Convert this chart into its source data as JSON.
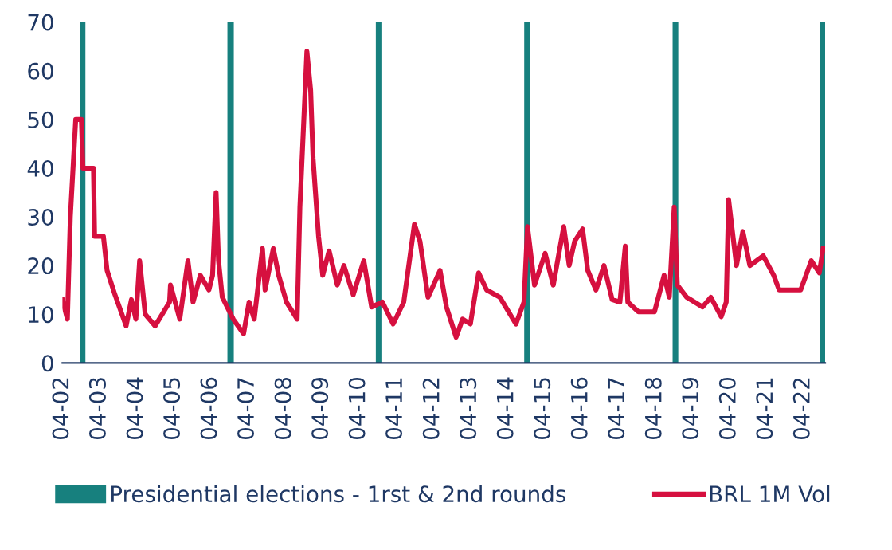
{
  "chart_data": {
    "type": "line",
    "x": [
      "2002-04-01",
      "2002-05-20",
      "2002-06-18",
      "2002-08-10",
      "2002-10-05",
      "2002-10-20",
      "2003-02-01",
      "2003-02-12",
      "2003-05-10",
      "2003-06-15",
      "2003-09-01",
      "2003-12-20",
      "2004-02-10",
      "2004-03-25",
      "2004-05-01",
      "2004-06-25",
      "2004-10-01",
      "2005-02-20",
      "2005-03-01",
      "2005-06-01",
      "2005-08-20",
      "2005-10-10",
      "2005-12-20",
      "2006-03-15",
      "2006-04-20",
      "2006-05-25",
      "2006-06-18",
      "2006-07-25",
      "2006-11-10",
      "2007-02-20",
      "2007-04-15",
      "2007-06-05",
      "2007-08-25",
      "2007-09-20",
      "2007-12-10",
      "2008-02-01",
      "2008-04-18",
      "2008-08-01",
      "2008-08-28",
      "2008-11-05",
      "2008-12-12",
      "2009-01-05",
      "2009-02-28",
      "2009-04-10",
      "2009-06-12",
      "2009-09-01",
      "2009-11-05",
      "2010-02-05",
      "2010-05-20",
      "2010-08-05",
      "2010-11-20",
      "2011-03-05",
      "2011-06-18",
      "2011-10-01",
      "2011-11-25",
      "2012-02-12",
      "2012-06-10",
      "2012-08-12",
      "2012-11-15",
      "2013-01-18",
      "2013-04-05",
      "2013-06-25",
      "2013-09-12",
      "2014-01-20",
      "2014-06-28",
      "2014-09-15",
      "2014-10-20",
      "2014-12-28",
      "2015-04-12",
      "2015-07-01",
      "2015-10-12",
      "2015-12-05",
      "2016-01-28",
      "2016-04-15",
      "2016-06-05",
      "2016-08-25",
      "2016-11-12",
      "2017-02-01",
      "2017-04-18",
      "2017-06-10",
      "2017-07-05",
      "2017-10-18",
      "2018-03-25",
      "2018-06-28",
      "2018-08-18",
      "2018-10-05",
      "2018-11-05",
      "2019-02-05",
      "2019-07-12",
      "2019-10-01",
      "2020-01-12",
      "2020-03-01",
      "2020-03-25",
      "2020-06-10",
      "2020-08-12",
      "2020-10-20",
      "2021-03-01",
      "2021-06-12",
      "2021-08-05",
      "2022-03-05",
      "2022-06-18",
      "2022-09-05",
      "2022-10-12"
    ],
    "series": [
      {
        "name": "BRL 1M Vol",
        "color": "#d6103f",
        "values": [
          13,
          9,
          30,
          50,
          50,
          40,
          40,
          26,
          26,
          19,
          14,
          7.6,
          13,
          9,
          21,
          10,
          7.6,
          12.5,
          16,
          9,
          21,
          12.5,
          18,
          15,
          18,
          35,
          21,
          13.5,
          9,
          6,
          12.5,
          9,
          23.5,
          15,
          23.5,
          18,
          12.5,
          9,
          32,
          64,
          56,
          42,
          26,
          18,
          23,
          16,
          20,
          14,
          21,
          11.5,
          12.5,
          8,
          12.5,
          28.5,
          25,
          13.5,
          19,
          11.5,
          5.3,
          9,
          8,
          18.5,
          15,
          13.5,
          8,
          12.5,
          28,
          16,
          22.5,
          16,
          28,
          20,
          25,
          27.5,
          19,
          15,
          20,
          13,
          12.5,
          24,
          12.5,
          10.5,
          10.5,
          18,
          13.5,
          32,
          16,
          13.5,
          11.5,
          13.5,
          9.5,
          12.5,
          33.5,
          20,
          27,
          20,
          22,
          18,
          15,
          15,
          21,
          18.5,
          23.5
        ]
      }
    ],
    "ref_lines": [
      {
        "axis": "x",
        "value": "2002-10-06",
        "label": "Presidential elections - 1rst & 2nd rounds",
        "color": "#17807e"
      },
      {
        "axis": "x",
        "value": "2002-10-27",
        "color": "#17807e"
      },
      {
        "axis": "x",
        "value": "2006-10-01",
        "color": "#17807e"
      },
      {
        "axis": "x",
        "value": "2006-10-29",
        "color": "#17807e"
      },
      {
        "axis": "x",
        "value": "2010-10-03",
        "color": "#17807e"
      },
      {
        "axis": "x",
        "value": "2010-10-31",
        "color": "#17807e"
      },
      {
        "axis": "x",
        "value": "2014-10-05",
        "color": "#17807e"
      },
      {
        "axis": "x",
        "value": "2014-10-26",
        "color": "#17807e"
      },
      {
        "axis": "x",
        "value": "2018-10-07",
        "color": "#17807e"
      },
      {
        "axis": "x",
        "value": "2018-10-28",
        "color": "#17807e"
      },
      {
        "axis": "x",
        "value": "2022-10-02",
        "color": "#17807e"
      },
      {
        "axis": "x",
        "value": "2022-10-30",
        "color": "#17807e"
      }
    ],
    "xlim": [
      "2002-04-01",
      "2022-11-01"
    ],
    "xticks": [
      {
        "value": "2002-04-01",
        "label": "04-02"
      },
      {
        "value": "2003-04-01",
        "label": "04-03"
      },
      {
        "value": "2004-04-01",
        "label": "04-04"
      },
      {
        "value": "2005-04-01",
        "label": "04-05"
      },
      {
        "value": "2006-04-01",
        "label": "04-06"
      },
      {
        "value": "2007-04-01",
        "label": "04-07"
      },
      {
        "value": "2008-04-01",
        "label": "04-08"
      },
      {
        "value": "2009-04-01",
        "label": "04-09"
      },
      {
        "value": "2010-04-01",
        "label": "04-10"
      },
      {
        "value": "2011-04-01",
        "label": "04-11"
      },
      {
        "value": "2012-04-01",
        "label": "04-12"
      },
      {
        "value": "2013-04-01",
        "label": "04-13"
      },
      {
        "value": "2014-04-01",
        "label": "04-14"
      },
      {
        "value": "2015-04-01",
        "label": "04-15"
      },
      {
        "value": "2016-04-01",
        "label": "04-16"
      },
      {
        "value": "2017-04-01",
        "label": "04-17"
      },
      {
        "value": "2018-04-01",
        "label": "04-18"
      },
      {
        "value": "2019-04-01",
        "label": "04-19"
      },
      {
        "value": "2020-04-01",
        "label": "04-20"
      },
      {
        "value": "2021-04-01",
        "label": "04-21"
      },
      {
        "value": "2022-04-01",
        "label": "04-22"
      }
    ],
    "ylim": [
      0,
      70
    ],
    "yticks": [
      0,
      10,
      20,
      30,
      40,
      50,
      60,
      70
    ],
    "grid": false,
    "legend": "bottom"
  }
}
